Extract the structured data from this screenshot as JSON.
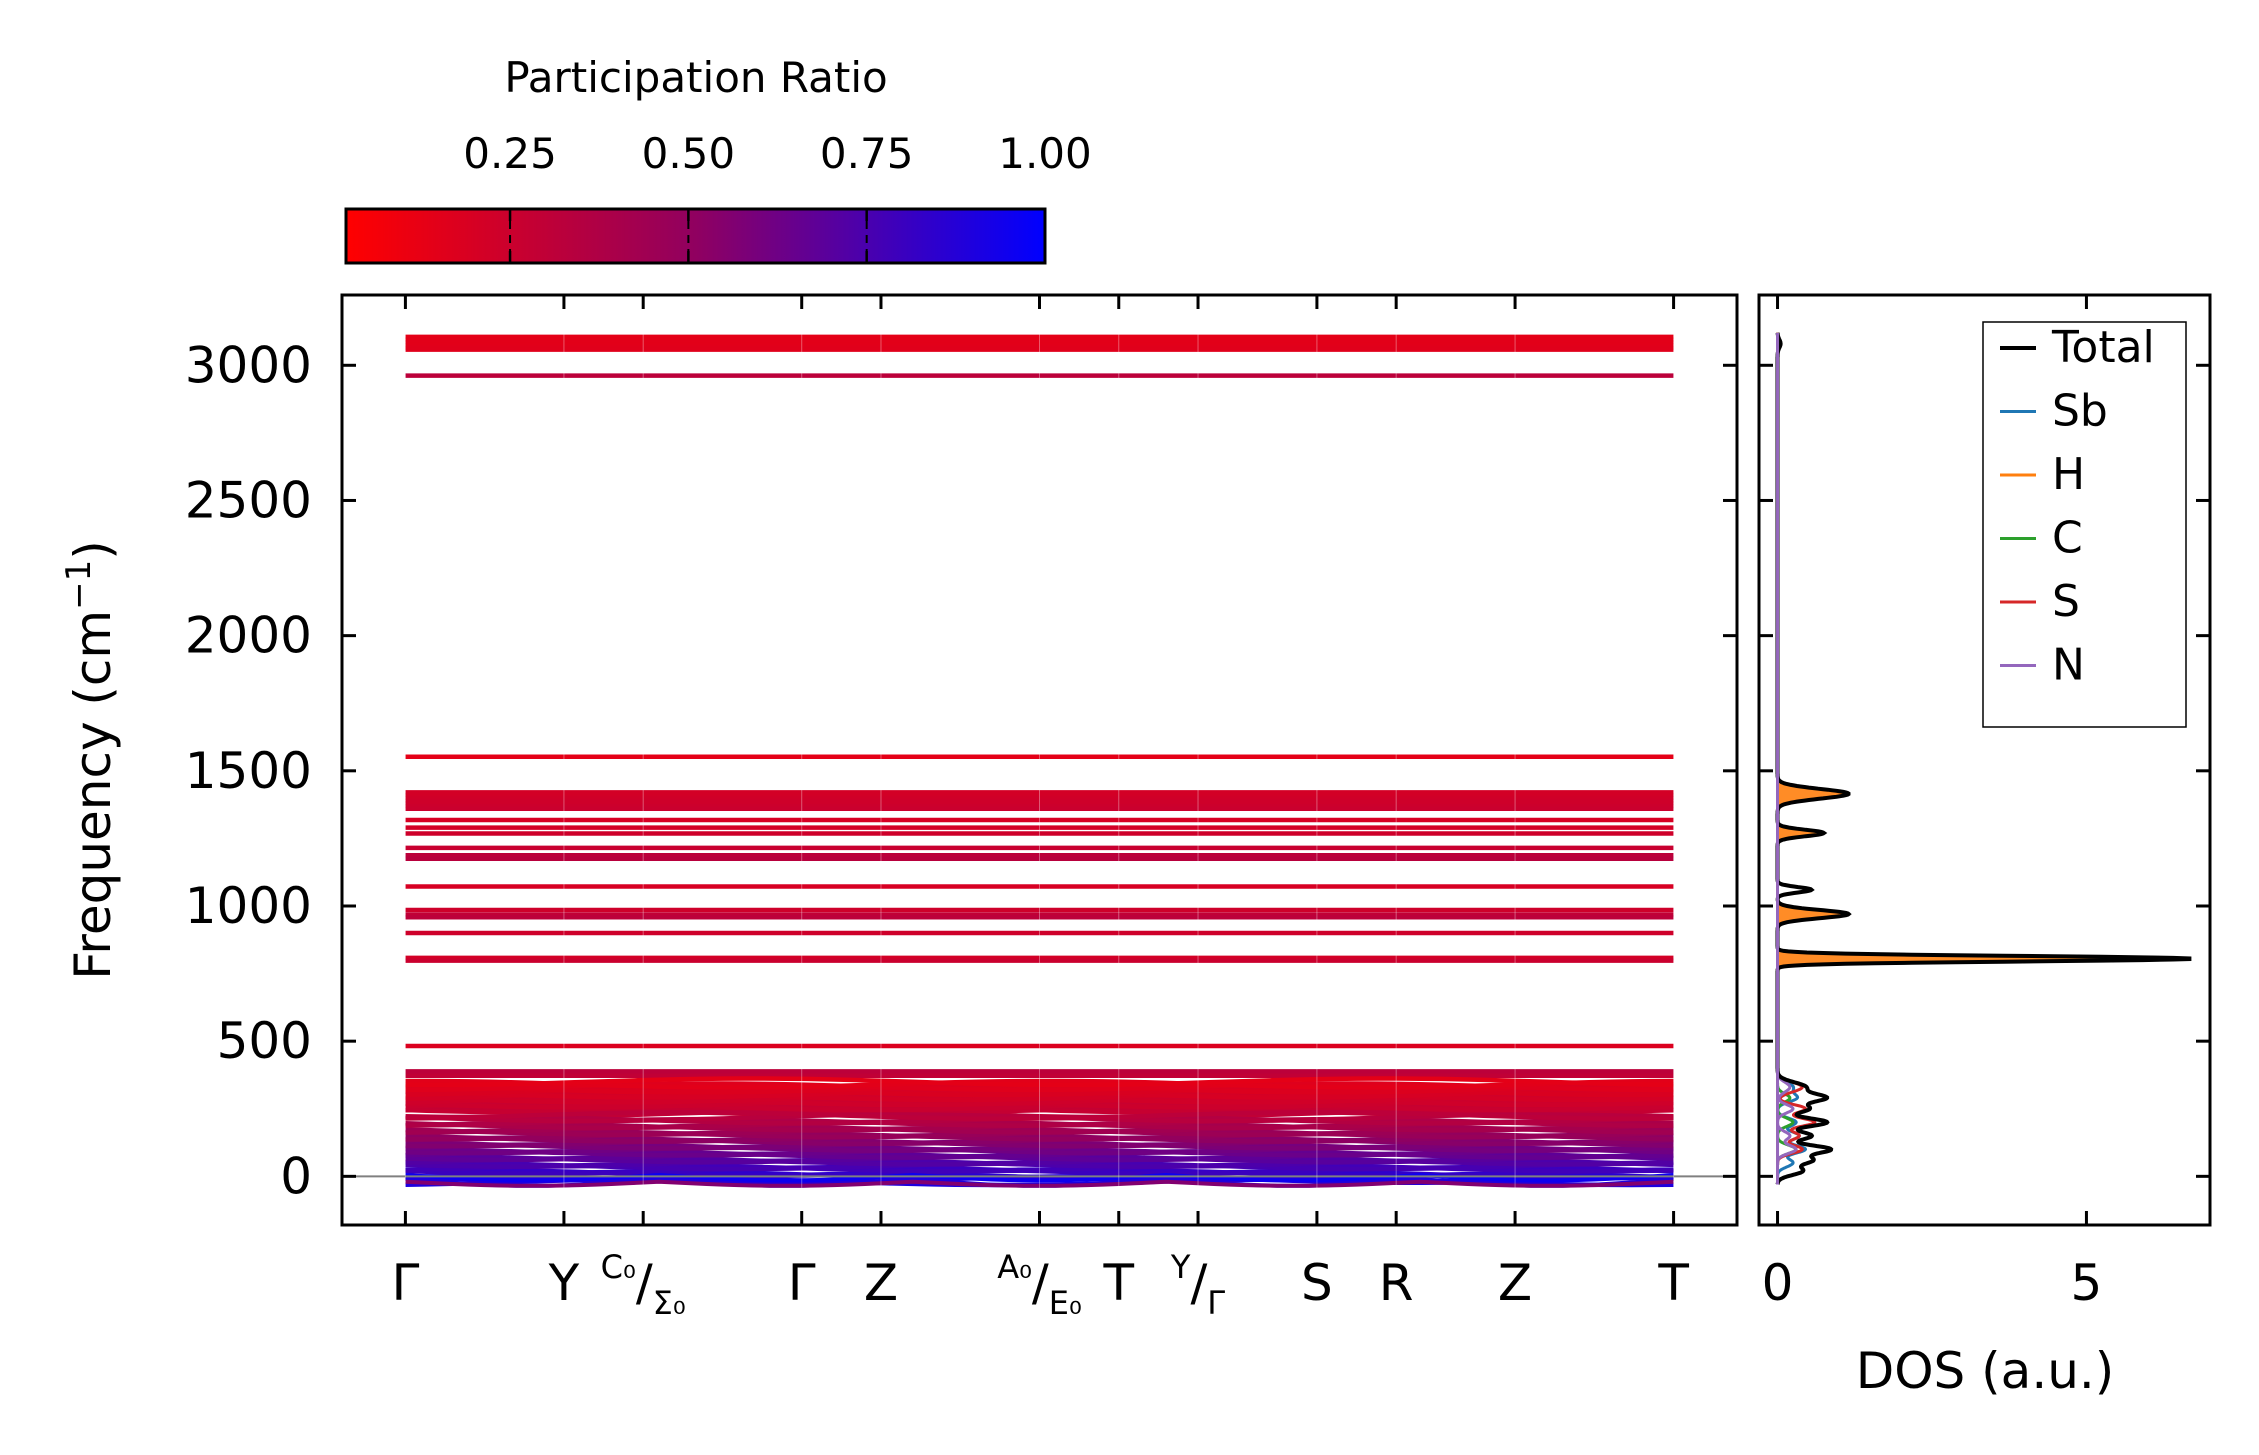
{
  "chart_data": [
    {
      "type": "line",
      "name": "phonon-band-structure",
      "ylabel_main": "Frequency (cm",
      "ylabel_sup": "−1",
      "ylabel_close": ")",
      "ylim": [
        -180,
        3260
      ],
      "yticks": [
        0,
        500,
        1000,
        1500,
        2000,
        2500,
        3000
      ],
      "ytick_labels": [
        "0",
        "500",
        "1000",
        "1500",
        "2000",
        "2500",
        "3000"
      ],
      "path_points": [
        {
          "pos": 0,
          "label": "Γ"
        },
        {
          "pos": 2,
          "label": "Y"
        },
        {
          "pos": 3,
          "label": "C₀/Σ₀",
          "main": "C₀",
          "sub": "Σ₀"
        },
        {
          "pos": 5,
          "label": "Γ"
        },
        {
          "pos": 6,
          "label": "Z"
        },
        {
          "pos": 8,
          "label": "A₀/E₀",
          "main": "A₀",
          "sub": "E₀"
        },
        {
          "pos": 9,
          "label": "T"
        },
        {
          "pos": 10,
          "label": "Y/Γ",
          "main": "Y",
          "sub": "Γ"
        },
        {
          "pos": 11.5,
          "label": "S"
        },
        {
          "pos": 12.5,
          "label": "R"
        },
        {
          "pos": 14,
          "label": "Z"
        },
        {
          "pos": 16,
          "label": "T"
        }
      ],
      "xlim": [
        -0.8,
        16.8
      ],
      "flat_bands": [
        {
          "freq": 3105,
          "pr": 0.12
        },
        {
          "freq": 3095,
          "pr": 0.12
        },
        {
          "freq": 3085,
          "pr": 0.13
        },
        {
          "freq": 3075,
          "pr": 0.13
        },
        {
          "freq": 3065,
          "pr": 0.14
        },
        {
          "freq": 3058,
          "pr": 0.14
        },
        {
          "freq": 2962,
          "pr": 0.3
        },
        {
          "freq": 1552,
          "pr": 0.12
        },
        {
          "freq": 1420,
          "pr": 0.2
        },
        {
          "freq": 1410,
          "pr": 0.2
        },
        {
          "freq": 1400,
          "pr": 0.21
        },
        {
          "freq": 1390,
          "pr": 0.22
        },
        {
          "freq": 1380,
          "pr": 0.22
        },
        {
          "freq": 1370,
          "pr": 0.23
        },
        {
          "freq": 1360,
          "pr": 0.24
        },
        {
          "freq": 1318,
          "pr": 0.18
        },
        {
          "freq": 1290,
          "pr": 0.2
        },
        {
          "freq": 1268,
          "pr": 0.22
        },
        {
          "freq": 1215,
          "pr": 0.25
        },
        {
          "freq": 1188,
          "pr": 0.3
        },
        {
          "freq": 1175,
          "pr": 0.32
        },
        {
          "freq": 1072,
          "pr": 0.18
        },
        {
          "freq": 985,
          "pr": 0.22
        },
        {
          "freq": 968,
          "pr": 0.28
        },
        {
          "freq": 958,
          "pr": 0.3
        },
        {
          "freq": 900,
          "pr": 0.22
        },
        {
          "freq": 808,
          "pr": 0.2
        },
        {
          "freq": 798,
          "pr": 0.24
        },
        {
          "freq": 482,
          "pr": 0.16
        },
        {
          "freq": 388,
          "pr": 0.3
        },
        {
          "freq": 372,
          "pr": 0.28
        }
      ],
      "band_clusters": [
        {
          "min": 230,
          "max": 350,
          "count": 14,
          "pr_min": 0.12,
          "pr_max": 0.28
        },
        {
          "min": -20,
          "max": 225,
          "count": 30,
          "pr_min": 0.3,
          "pr_max": 0.9
        }
      ],
      "acoustic_bands": [
        {
          "base": -10,
          "amp": 25,
          "pr": 0.9
        },
        {
          "base": -20,
          "amp": 15,
          "pr": 0.55
        },
        {
          "base": 5,
          "amp": 20,
          "pr": 0.95
        }
      ],
      "zero_line": 0
    },
    {
      "type": "line",
      "name": "density-of-states",
      "xlabel": "DOS (a.u.)",
      "xlim": [
        -0.3,
        7.0
      ],
      "xticks": [
        0,
        5
      ],
      "xtick_labels": [
        "0",
        "5"
      ],
      "legend_position": "top-right",
      "series": [
        {
          "name": "Total",
          "color": "#000000",
          "peaks": [
            [
              1415,
              1.15,
              18
            ],
            [
              1270,
              0.75,
              12
            ],
            [
              1060,
              0.55,
              10
            ],
            [
              970,
              1.15,
              15
            ],
            [
              805,
              6.7,
              10
            ],
            [
              330,
              0.45,
              18
            ],
            [
              290,
              0.75,
              15
            ],
            [
              250,
              0.5,
              15
            ],
            [
              200,
              0.8,
              15
            ],
            [
              150,
              0.55,
              15
            ],
            [
              100,
              0.85,
              15
            ],
            [
              60,
              0.55,
              15
            ],
            [
              20,
              0.4,
              15
            ],
            [
              3080,
              0.05,
              15
            ]
          ]
        },
        {
          "name": "Sb",
          "color": "#1f77b4",
          "peaks": [
            [
              330,
              0.25,
              18
            ],
            [
              290,
              0.3,
              15
            ],
            [
              200,
              0.3,
              15
            ],
            [
              150,
              0.35,
              15
            ],
            [
              100,
              0.45,
              15
            ],
            [
              50,
              0.25,
              15
            ]
          ]
        },
        {
          "name": "H",
          "color": "#ff7f0e",
          "peaks": [
            [
              1415,
              1.08,
              18
            ],
            [
              1270,
              0.7,
              12
            ],
            [
              970,
              1.08,
              15
            ],
            [
              805,
              6.3,
              10
            ],
            [
              3080,
              0.04,
              15
            ]
          ]
        },
        {
          "name": "C",
          "color": "#2ca02c",
          "peaks": [
            [
              290,
              0.2,
              15
            ],
            [
              200,
              0.25,
              15
            ],
            [
              100,
              0.3,
              15
            ]
          ]
        },
        {
          "name": "S",
          "color": "#d62728",
          "peaks": [
            [
              330,
              0.4,
              18
            ],
            [
              250,
              0.45,
              15
            ],
            [
              200,
              0.6,
              15
            ],
            [
              150,
              0.35,
              15
            ],
            [
              100,
              0.4,
              15
            ]
          ]
        },
        {
          "name": "N",
          "color": "#9467bd",
          "peaks": [
            [
              330,
              0.2,
              18
            ],
            [
              250,
              0.25,
              15
            ],
            [
              150,
              0.2,
              15
            ],
            [
              100,
              0.3,
              15
            ]
          ]
        }
      ]
    }
  ],
  "colorbar": {
    "title": "Participation Ratio",
    "ticks": [
      0.25,
      0.5,
      0.75,
      1.0
    ],
    "tick_labels": [
      "0.25",
      "0.50",
      "0.75",
      "1.00"
    ],
    "range": [
      0.02,
      1.0
    ],
    "color_low": "#ff0000",
    "color_mid": "#800080",
    "color_high": "#0000ff"
  },
  "legend_title": "",
  "zero_line_color": "#808080"
}
